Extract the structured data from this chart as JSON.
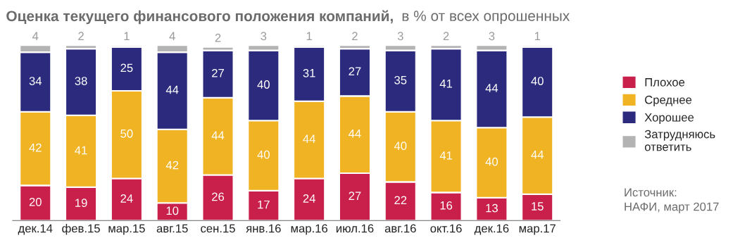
{
  "chart_data": {
    "type": "bar",
    "stacked": true,
    "title": "Оценка текущего финансового положения компаний,",
    "subtitle": "в % от всех опрошенных",
    "categories": [
      "дек.14",
      "фев.15",
      "мар.15",
      "авг.15",
      "сен.15",
      "янв.16",
      "мар.16",
      "июл.16",
      "авг.16",
      "окт.16",
      "дек.16",
      "мар.17"
    ],
    "series": [
      {
        "name": "Плохое",
        "color": "#c8204b",
        "values": [
          20,
          19,
          24,
          10,
          26,
          17,
          24,
          27,
          22,
          16,
          13,
          15
        ]
      },
      {
        "name": "Среднее",
        "color": "#f0b323",
        "values": [
          42,
          41,
          50,
          42,
          44,
          40,
          44,
          44,
          40,
          41,
          40,
          44
        ]
      },
      {
        "name": "Хорошее",
        "color": "#2b2a7c",
        "values": [
          34,
          38,
          25,
          44,
          27,
          40,
          31,
          27,
          35,
          41,
          44,
          40
        ]
      },
      {
        "name": "Затрудняюсь ответить",
        "color": "#b3b3b3",
        "values": [
          4,
          2,
          1,
          4,
          2,
          3,
          1,
          2,
          3,
          2,
          3,
          1
        ]
      }
    ],
    "data_labels": true,
    "legend": "right",
    "grid": false,
    "annotations": [
      "Источник:\nНАФИ, март 2017"
    ]
  }
}
